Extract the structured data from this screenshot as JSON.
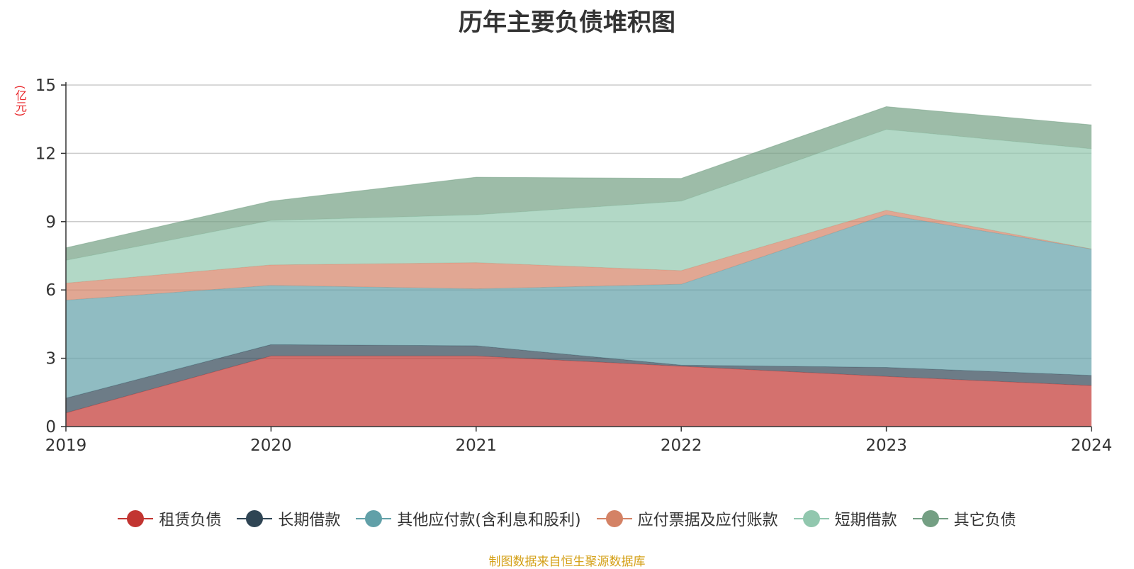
{
  "chart_data": {
    "type": "area",
    "stacked": true,
    "title": "历年主要负债堆积图",
    "ylabel": "(亿元)",
    "xlabel": "",
    "categories": [
      "2019",
      "2020",
      "2021",
      "2022",
      "2023",
      "2024"
    ],
    "ylim": [
      0,
      15
    ],
    "yticks": [
      0,
      3,
      6,
      9,
      12,
      15
    ],
    "grid": true,
    "legend_position": "bottom",
    "series": [
      {
        "name": "租赁负债",
        "color": "#c23531",
        "values": [
          0.6,
          3.1,
          3.1,
          2.65,
          2.2,
          1.8
        ]
      },
      {
        "name": "长期借款",
        "color": "#2f4554",
        "values": [
          0.65,
          0.5,
          0.45,
          0.05,
          0.4,
          0.45
        ]
      },
      {
        "name": "其他应付款(含利息和股利)",
        "color": "#61a0a8",
        "values": [
          4.3,
          2.6,
          2.5,
          3.55,
          6.7,
          5.55
        ]
      },
      {
        "name": "应付票据及应付账款",
        "color": "#d48265",
        "values": [
          0.75,
          0.9,
          1.15,
          0.6,
          0.2,
          0.0
        ]
      },
      {
        "name": "短期借款",
        "color": "#91c7ae",
        "values": [
          1.0,
          1.95,
          2.1,
          3.05,
          3.55,
          4.4
        ]
      },
      {
        "name": "其它负债",
        "color": "#749f83",
        "values": [
          0.55,
          0.85,
          1.65,
          1.0,
          1.0,
          1.05
        ]
      }
    ]
  },
  "source_note": "制图数据来自恒生聚源数据库"
}
